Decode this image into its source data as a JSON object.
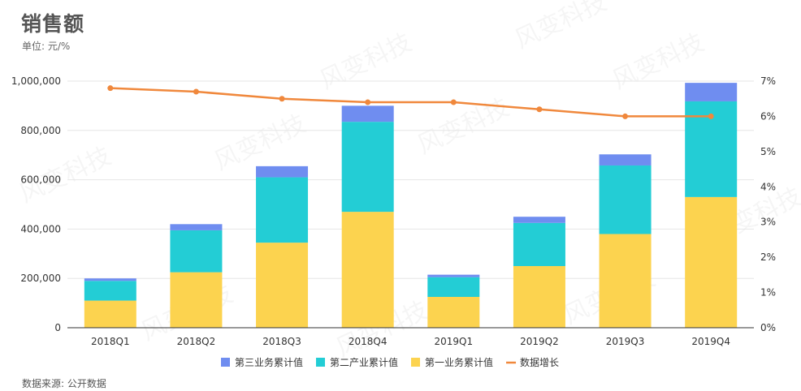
{
  "header": {
    "title": "销售额",
    "subtitle": "单位: 元/%"
  },
  "footer": {
    "source": "数据来源: 公开数据"
  },
  "chart_data": {
    "type": "bar",
    "stacked": true,
    "title": "销售额",
    "categories": [
      "2018Q1",
      "2018Q2",
      "2018Q3",
      "2018Q4",
      "2019Q1",
      "2019Q2",
      "2019Q3",
      "2019Q4"
    ],
    "series": [
      {
        "name": "第一业务累计值",
        "type": "bar",
        "axis": "left",
        "color": "#FCD34F",
        "values": [
          110000,
          225000,
          345000,
          470000,
          125000,
          250000,
          380000,
          530000
        ]
      },
      {
        "name": "第二产业累计值",
        "type": "bar",
        "axis": "left",
        "color": "#23CDD5",
        "values": [
          80000,
          170000,
          265000,
          365000,
          80000,
          175000,
          278000,
          388000
        ]
      },
      {
        "name": "第三业务累计值",
        "type": "bar",
        "axis": "left",
        "color": "#6F8DF0",
        "values": [
          10000,
          25000,
          45000,
          65000,
          10000,
          25000,
          45000,
          75000
        ]
      },
      {
        "name": "数据增长",
        "type": "line",
        "axis": "right",
        "color": "#F0883C",
        "values": [
          6.8,
          6.7,
          6.5,
          6.4,
          6.4,
          6.2,
          6.0,
          6.0
        ]
      }
    ],
    "legend_order": [
      "第三业务累计值",
      "第二产业累计值",
      "第一业务累计值",
      "数据增长"
    ],
    "y_left": {
      "ylim": [
        0,
        1000000
      ],
      "ticks": [
        0,
        200000,
        400000,
        600000,
        800000,
        1000000
      ],
      "tick_labels": [
        "0",
        "200,000",
        "400,000",
        "600,000",
        "800,000",
        "1,000,000"
      ]
    },
    "y_right": {
      "ylim": [
        0,
        7
      ],
      "ticks": [
        0,
        1,
        2,
        3,
        4,
        5,
        6,
        7
      ],
      "tick_labels": [
        "0%",
        "1%",
        "2%",
        "3%",
        "4%",
        "5%",
        "6%",
        "7%"
      ]
    },
    "grid": true,
    "legend_position": "bottom-center",
    "watermark": "风变科技"
  }
}
